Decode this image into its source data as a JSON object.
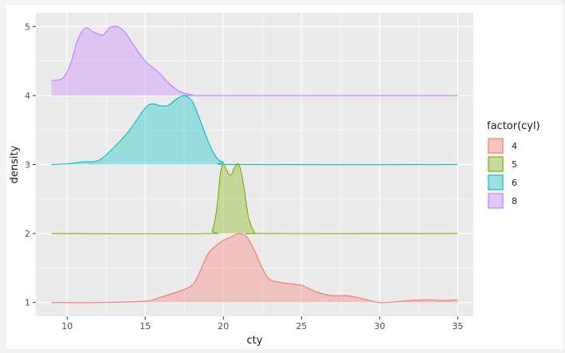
{
  "chart_data": {
    "type": "area",
    "chart_kind": "ridgeline density",
    "title": "",
    "xlabel": "cty",
    "ylabel": "density",
    "xlim": [
      8,
      36
    ],
    "ylim": [
      0.8,
      5.2
    ],
    "x_ticks": [
      10,
      15,
      20,
      25,
      30,
      35
    ],
    "y_ticks": [
      1,
      2,
      3,
      4,
      5
    ],
    "grid": true,
    "legend": {
      "title": "factor(cyl)",
      "position": "right"
    },
    "series": [
      {
        "name": "4",
        "baseline": 1,
        "fill": "#F8766D",
        "points": [
          [
            9,
            1.0
          ],
          [
            12,
            1.0
          ],
          [
            15,
            1.02
          ],
          [
            16,
            1.08
          ],
          [
            17,
            1.15
          ],
          [
            18,
            1.25
          ],
          [
            18.5,
            1.45
          ],
          [
            19,
            1.7
          ],
          [
            19.5,
            1.82
          ],
          [
            20,
            1.9
          ],
          [
            20.5,
            1.95
          ],
          [
            21,
            2.0
          ],
          [
            21.5,
            1.95
          ],
          [
            22,
            1.75
          ],
          [
            22.5,
            1.5
          ],
          [
            23,
            1.33
          ],
          [
            24,
            1.28
          ],
          [
            25,
            1.25
          ],
          [
            26,
            1.15
          ],
          [
            27,
            1.1
          ],
          [
            28,
            1.1
          ],
          [
            29,
            1.05
          ],
          [
            30,
            1.0
          ],
          [
            31,
            1.01
          ],
          [
            32,
            1.03
          ],
          [
            33,
            1.04
          ],
          [
            34,
            1.03
          ],
          [
            35,
            1.04
          ]
        ]
      },
      {
        "name": "5",
        "baseline": 2,
        "fill": "#7CAE00",
        "points": [
          [
            9,
            2.0
          ],
          [
            18.8,
            2.0
          ],
          [
            19.3,
            2.05
          ],
          [
            19.6,
            2.4
          ],
          [
            19.8,
            2.85
          ],
          [
            20,
            3.0
          ],
          [
            20.3,
            2.88
          ],
          [
            20.5,
            2.85
          ],
          [
            20.7,
            2.95
          ],
          [
            21,
            3.0
          ],
          [
            21.3,
            2.7
          ],
          [
            21.6,
            2.25
          ],
          [
            22,
            2.02
          ],
          [
            22.5,
            2.0
          ],
          [
            35,
            2.0
          ]
        ]
      },
      {
        "name": "6",
        "baseline": 3,
        "fill": "#00BFC4",
        "points": [
          [
            9,
            3.0
          ],
          [
            10,
            3.01
          ],
          [
            11,
            3.04
          ],
          [
            12,
            3.06
          ],
          [
            13,
            3.25
          ],
          [
            14,
            3.5
          ],
          [
            15,
            3.82
          ],
          [
            15.5,
            3.88
          ],
          [
            16,
            3.85
          ],
          [
            16.5,
            3.86
          ],
          [
            17,
            3.95
          ],
          [
            17.5,
            4.0
          ],
          [
            18,
            3.92
          ],
          [
            18.5,
            3.65
          ],
          [
            19,
            3.35
          ],
          [
            19.5,
            3.12
          ],
          [
            20,
            3.03
          ],
          [
            21,
            3.0
          ],
          [
            35,
            3.0
          ]
        ]
      },
      {
        "name": "8",
        "baseline": 4,
        "fill": "#C77CFF",
        "points": [
          [
            9,
            4.22
          ],
          [
            9.7,
            4.25
          ],
          [
            10.2,
            4.45
          ],
          [
            10.7,
            4.82
          ],
          [
            11.2,
            4.98
          ],
          [
            11.7,
            4.92
          ],
          [
            12.3,
            4.88
          ],
          [
            12.7,
            4.98
          ],
          [
            13.2,
            5.0
          ],
          [
            13.7,
            4.92
          ],
          [
            14.2,
            4.75
          ],
          [
            15,
            4.5
          ],
          [
            15.8,
            4.35
          ],
          [
            16.5,
            4.18
          ],
          [
            17.2,
            4.06
          ],
          [
            18,
            4.01
          ],
          [
            19,
            4.0
          ],
          [
            35,
            4.0
          ]
        ]
      }
    ]
  }
}
